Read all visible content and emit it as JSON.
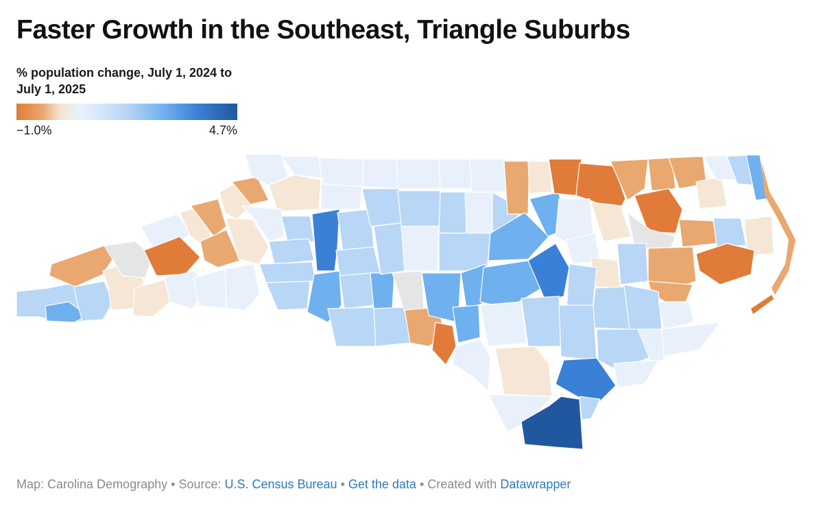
{
  "title": "Faster Growth in the Southeast, Triangle Suburbs",
  "legend": {
    "title": "% population change, July 1, 2024 to July 1, 2025",
    "min_label": "−1.0%",
    "max_label": "4.7%",
    "min": -1.0,
    "max": 4.7,
    "colors": [
      "#e07b39",
      "#e9a870",
      "#f5e6d6",
      "#e8f1fb",
      "#b8d6f6",
      "#6fb0ee",
      "#3a80d6",
      "#21579f"
    ]
  },
  "footer": {
    "map_credit": "Map: Carolina Demography",
    "separator": " • ",
    "source_prefix": "Source: ",
    "source_link": "U.S. Census Bureau",
    "get_data": "Get the data",
    "created_prefix": "Created with ",
    "created_link": "Datawrapper"
  }
}
